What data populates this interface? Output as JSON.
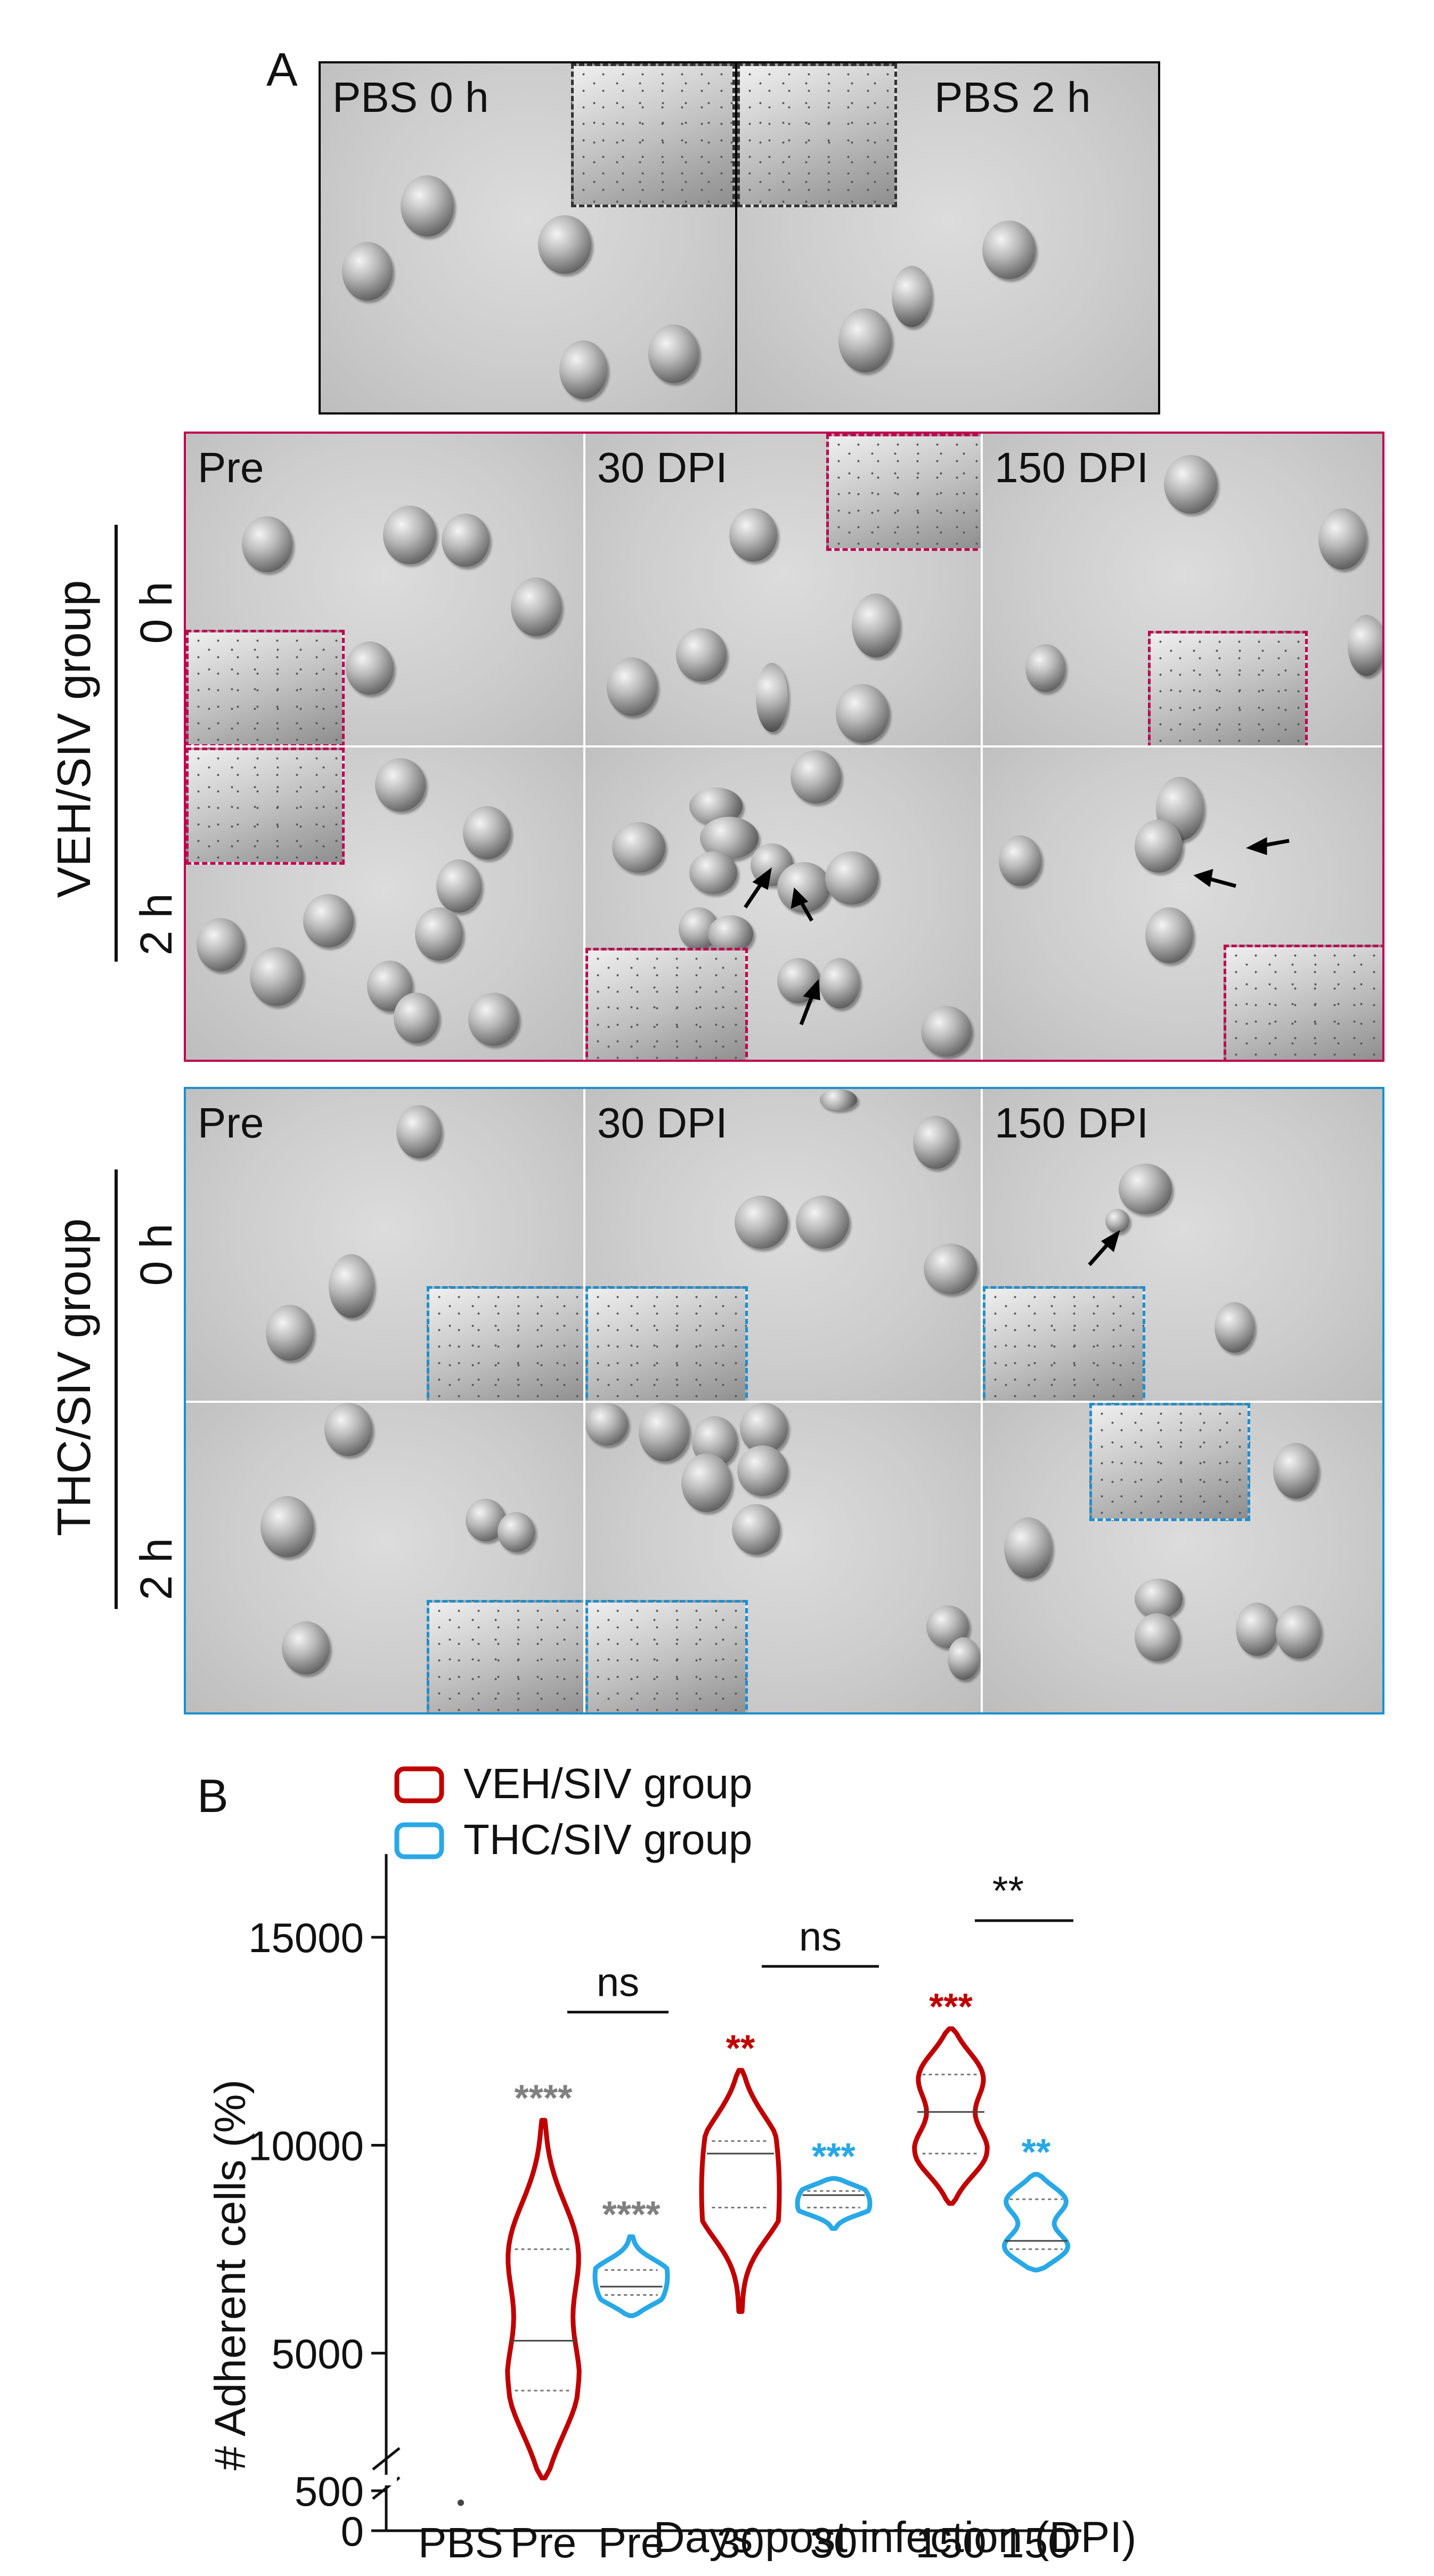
{
  "panel_labels": {
    "a": "A",
    "b": "B"
  },
  "panel_a": {
    "pbs_0h": "PBS  0 h",
    "pbs_2h": "PBS  2 h",
    "veh": {
      "group_title": "VEH/SIV group",
      "row_0h": "0 h",
      "row_2h": "2 h",
      "col_labels": [
        "Pre",
        "30 DPI",
        "150 DPI"
      ]
    },
    "thc": {
      "group_title": "THC/SIV group",
      "row_0h": "0 h",
      "row_2h": "2 h",
      "col_labels": [
        "Pre",
        "30 DPI",
        "150 DPI"
      ]
    }
  },
  "colors": {
    "veh": "#c0004f",
    "thc": "#1b8fd1",
    "veh_plot": "#c00000",
    "thc_plot": "#29a8e6",
    "gray_stars": "#808080"
  },
  "chart_data": {
    "type": "violin",
    "ylabel": "# Adherent cells (%)",
    "xlabel": "Days post infection (DPI)",
    "y_ticks": [
      0,
      500,
      5000,
      10000,
      15000
    ],
    "y_axis_break": [
      700,
      1500
    ],
    "categories": [
      "PBS",
      "Pre",
      "Pre",
      "30",
      "30",
      "150",
      "150"
    ],
    "legend": [
      "VEH/SIV group",
      "THC/SIV group"
    ],
    "violins": [
      {
        "group": "VEH/SIV group",
        "category": "Pre",
        "min": 2000,
        "max": 10600,
        "median": 5300,
        "q1": 4100,
        "q3": 7500,
        "stars": "****",
        "star_color": "#808080"
      },
      {
        "group": "THC/SIV group",
        "category": "Pre",
        "min": 5900,
        "max": 7800,
        "median": 6600,
        "q1": 6400,
        "q3": 7000,
        "stars": "****",
        "star_color": "#808080"
      },
      {
        "group": "VEH/SIV group",
        "category": "30",
        "min": 6000,
        "max": 11800,
        "median": 9800,
        "q1": 8500,
        "q3": 10100,
        "stars": "**",
        "star_color": "#c00000"
      },
      {
        "group": "THC/SIV group",
        "category": "30",
        "min": 8000,
        "max": 9200,
        "median": 8800,
        "q1": 8500,
        "q3": 8900,
        "stars": "***",
        "star_color": "#29a8e6"
      },
      {
        "group": "VEH/SIV group",
        "category": "150",
        "min": 8600,
        "max": 12800,
        "median": 10800,
        "q1": 9800,
        "q3": 11700,
        "stars": "***",
        "star_color": "#c00000"
      },
      {
        "group": "THC/SIV group",
        "category": "150",
        "min": 7000,
        "max": 9300,
        "median": 7700,
        "q1": 7500,
        "q3": 8700,
        "stars": "**",
        "star_color": "#29a8e6"
      }
    ],
    "pbs_point": {
      "category": "PBS",
      "value": 350
    },
    "comparisons": [
      {
        "between": [
          "Pre",
          "Pre"
        ],
        "label": "ns"
      },
      {
        "between": [
          "30",
          "30"
        ],
        "label": "ns"
      },
      {
        "between": [
          "150",
          "150"
        ],
        "label": "**"
      }
    ]
  }
}
